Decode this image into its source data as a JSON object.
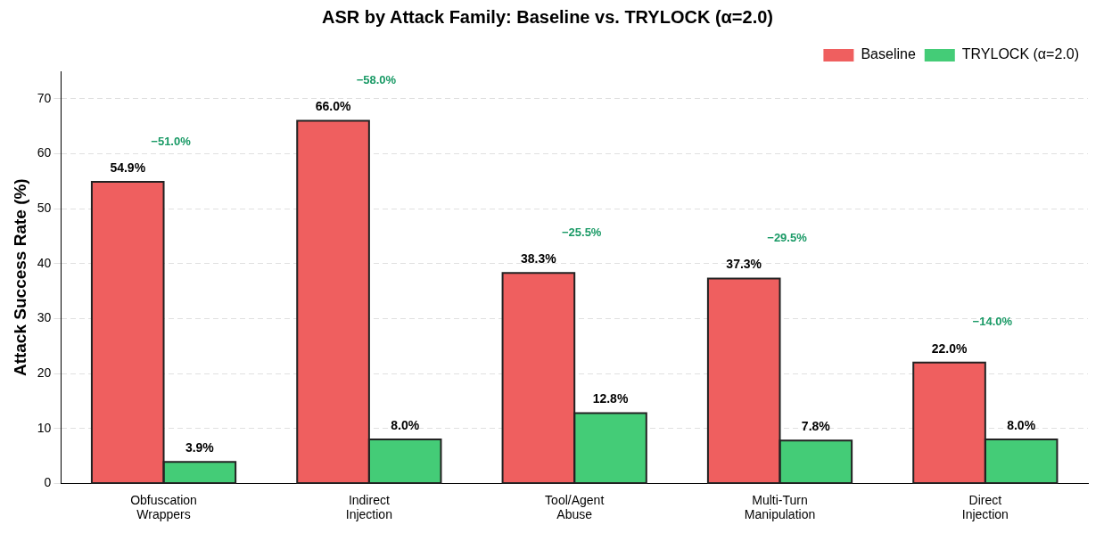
{
  "chart_data": {
    "type": "bar",
    "title": "ASR by Attack Family: Baseline vs. TRYLOCK (α=2.0)",
    "ylabel": "Attack Success Rate (%)",
    "categories": [
      "Obfuscation Wrappers",
      "Indirect Injection",
      "Tool/Agent Abuse",
      "Multi-Turn Manipulation",
      "Direct Injection"
    ],
    "series": [
      {
        "name": "Baseline",
        "color": "#ef5f5f",
        "values": [
          54.9,
          66.0,
          38.3,
          37.3,
          22.0
        ],
        "value_labels": [
          "54.9%",
          "66.0%",
          "38.3%",
          "37.3%",
          "22.0%"
        ]
      },
      {
        "name": "TRYLOCK (α=2.0)",
        "color": "#44cc77",
        "values": [
          3.9,
          8.0,
          12.8,
          7.8,
          8.0
        ],
        "value_labels": [
          "3.9%",
          "8.0%",
          "12.8%",
          "7.8%",
          "8.0%"
        ]
      }
    ],
    "annotations": [
      "−51.0%",
      "−58.0%",
      "−25.5%",
      "−29.5%",
      "−14.0%"
    ],
    "ylim": [
      0,
      75
    ],
    "yticks": [
      0,
      10,
      20,
      30,
      40,
      50,
      60,
      70
    ],
    "grid": "y",
    "legend": "top right"
  }
}
